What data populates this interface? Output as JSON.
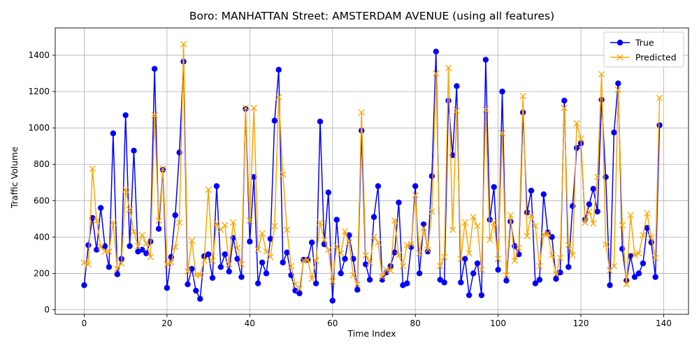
{
  "chart_data": {
    "type": "line",
    "title": "Boro: MANHATTAN Street: AMSTERDAM AVENUE (using all features)",
    "xlabel": "Time Index",
    "ylabel": "Traffic Volume",
    "xlim": [
      -7,
      146
    ],
    "ylim": [
      -25,
      1550
    ],
    "x_ticks": [
      0,
      20,
      40,
      60,
      80,
      100,
      120,
      140
    ],
    "y_ticks": [
      0,
      200,
      400,
      600,
      800,
      1000,
      1200,
      1400
    ],
    "grid": true,
    "legend_position": "top-right",
    "series": [
      {
        "name": "True",
        "color": "#0000ff",
        "marker": "circle",
        "values": [
          135,
          355,
          505,
          330,
          560,
          350,
          235,
          970,
          195,
          280,
          1070,
          350,
          875,
          320,
          330,
          310,
          375,
          1325,
          445,
          770,
          120,
          290,
          520,
          865,
          1365,
          140,
          225,
          105,
          60,
          295,
          305,
          175,
          680,
          235,
          305,
          210,
          395,
          280,
          180,
          1105,
          375,
          730,
          145,
          260,
          200,
          390,
          1040,
          1320,
          260,
          315,
          190,
          105,
          90,
          275,
          275,
          370,
          145,
          1035,
          360,
          645,
          50,
          495,
          200,
          280,
          410,
          280,
          110,
          985,
          250,
          165,
          510,
          680,
          165,
          205,
          240,
          315,
          590,
          135,
          145,
          345,
          680,
          200,
          470,
          320,
          735,
          1420,
          165,
          150,
          1150,
          850,
          1230,
          150,
          280,
          80,
          200,
          255,
          80,
          1375,
          495,
          675,
          220,
          1200,
          160,
          485,
          350,
          305,
          1085,
          535,
          655,
          145,
          165,
          635,
          425,
          400,
          170,
          205,
          1150,
          235,
          570,
          890,
          915,
          495,
          580,
          665,
          540,
          1155,
          730,
          135,
          975,
          1245,
          335,
          160,
          295,
          180,
          200,
          255,
          450,
          370,
          180,
          1015
        ]
      },
      {
        "name": "Predicted",
        "color": "#ffa500",
        "marker": "x",
        "values": [
          260,
          250,
          775,
          490,
          345,
          320,
          320,
          480,
          225,
          255,
          660,
          550,
          430,
          350,
          410,
          365,
          290,
          1070,
          490,
          775,
          250,
          260,
          345,
          480,
          1460,
          210,
          380,
          190,
          190,
          270,
          660,
          270,
          475,
          440,
          465,
          250,
          480,
          340,
          250,
          1110,
          490,
          1110,
          330,
          420,
          320,
          290,
          460,
          1170,
          745,
          440,
          240,
          140,
          115,
          270,
          275,
          170,
          270,
          480,
          385,
          330,
          155,
          350,
          310,
          430,
          370,
          190,
          140,
          1085,
          300,
          260,
          400,
          370,
          180,
          220,
          215,
          490,
          300,
          240,
          355,
          360,
          630,
          310,
          450,
          330,
          540,
          1300,
          240,
          290,
          1330,
          440,
          1095,
          280,
          480,
          310,
          510,
          460,
          220,
          1100,
          385,
          480,
          280,
          970,
          190,
          520,
          270,
          340,
          1175,
          405,
          520,
          460,
          240,
          415,
          420,
          300,
          195,
          285,
          1110,
          355,
          300,
          1025,
          940,
          480,
          540,
          475,
          730,
          1295,
          360,
          215,
          240,
          1210,
          465,
          140,
          520,
          300,
          310,
          410,
          530,
          400,
          285,
          1165
        ]
      }
    ]
  }
}
